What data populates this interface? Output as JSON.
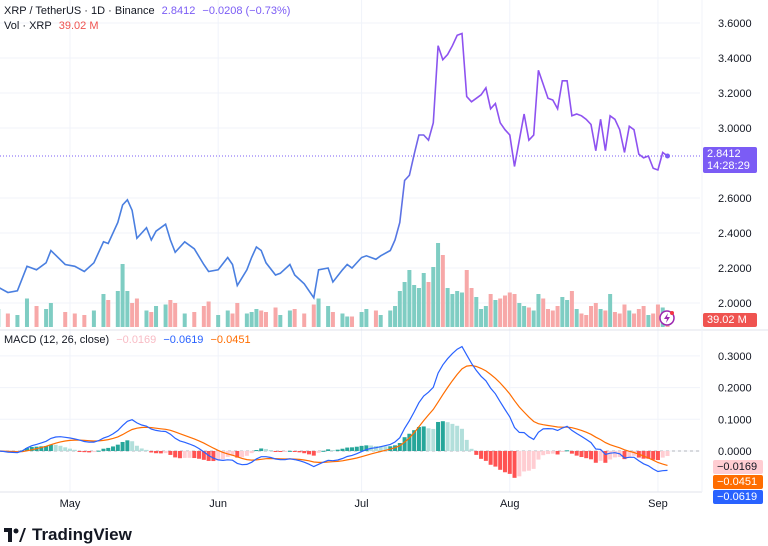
{
  "header": {
    "symbol": "XRP / TetherUS · 1D · Binance",
    "price": "2.8412",
    "change": "−0.0208 (−0.73%)",
    "vol_label": "Vol · XRP",
    "vol_value": "39.02 M"
  },
  "macd_header": {
    "label": "MACD (12, 26, close)",
    "histogram": "−0.0169",
    "macd": "−0.0619",
    "signal": "−0.0451"
  },
  "price_tag": {
    "price": "2.8412",
    "countdown": "14:28:29"
  },
  "vol_tag": "39.02 M",
  "macd_tags": {
    "histogram": "−0.0169",
    "signal": "−0.0451",
    "macd": "−0.0619"
  },
  "branding": "TradingView",
  "colors": {
    "price_up": "#4a7fe0",
    "price_late": "#8e52f0",
    "tag": "#7b5cf5",
    "vol_up": "#7fcdc3",
    "vol_down": "#f7a8a8",
    "vol_tag": "#ef5350",
    "macd": "#2962ff",
    "signal": "#ff6d00",
    "hist_pos_up": "#26a69a",
    "hist_pos_down": "#b2dfdb",
    "hist_neg_down": "#ff5252",
    "hist_neg_up": "#ffcdd2"
  },
  "chart_data": [
    {
      "type": "line",
      "title": "XRP / TetherUS · 1D · Binance",
      "ylim": [
        1.9,
        3.65
      ],
      "y_ticks": [
        "3.6000",
        "3.4000",
        "3.2000",
        "3.0000",
        "2.6000",
        "2.4000",
        "2.2000",
        "2.0000"
      ],
      "x_ticks": [
        "May",
        "Jun",
        "Jul",
        "Aug",
        "Sep"
      ],
      "grid": true,
      "series_columns": [
        "date",
        "close",
        "volume_m"
      ],
      "points": [
        [
          "2025-04-16",
          2.09,
          60
        ],
        [
          "2025-04-18",
          2.06,
          45
        ],
        [
          "2025-04-20",
          2.07,
          40
        ],
        [
          "2025-04-22",
          2.21,
          95
        ],
        [
          "2025-04-24",
          2.19,
          70
        ],
        [
          "2025-04-26",
          2.23,
          60
        ],
        [
          "2025-04-27",
          2.3,
          80
        ],
        [
          "2025-04-30",
          2.22,
          50
        ],
        [
          "2025-05-02",
          2.21,
          45
        ],
        [
          "2025-05-04",
          2.18,
          40
        ],
        [
          "2025-05-06",
          2.23,
          55
        ],
        [
          "2025-05-08",
          2.35,
          110
        ],
        [
          "2025-05-09",
          2.34,
          90
        ],
        [
          "2025-05-11",
          2.46,
          120
        ],
        [
          "2025-05-12",
          2.56,
          210
        ],
        [
          "2025-05-13",
          2.59,
          120
        ],
        [
          "2025-05-14",
          2.53,
          80
        ],
        [
          "2025-05-15",
          2.37,
          95
        ],
        [
          "2025-05-17",
          2.43,
          55
        ],
        [
          "2025-05-18",
          2.36,
          50
        ],
        [
          "2025-05-19",
          2.41,
          70
        ],
        [
          "2025-05-21",
          2.45,
          75
        ],
        [
          "2025-05-22",
          2.36,
          90
        ],
        [
          "2025-05-23",
          2.29,
          80
        ],
        [
          "2025-05-25",
          2.35,
          45
        ],
        [
          "2025-05-27",
          2.31,
          50
        ],
        [
          "2025-05-29",
          2.22,
          70
        ],
        [
          "2025-05-30",
          2.18,
          85
        ],
        [
          "2025-06-01",
          2.19,
          40
        ],
        [
          "2025-06-03",
          2.26,
          55
        ],
        [
          "2025-06-04",
          2.22,
          45
        ],
        [
          "2025-06-05",
          2.1,
          80
        ],
        [
          "2025-06-07",
          2.19,
          45
        ],
        [
          "2025-06-08",
          2.26,
          50
        ],
        [
          "2025-06-09",
          2.32,
          60
        ],
        [
          "2025-06-10",
          2.3,
          55
        ],
        [
          "2025-06-11",
          2.23,
          50
        ],
        [
          "2025-06-13",
          2.16,
          65
        ],
        [
          "2025-06-14",
          2.17,
          40
        ],
        [
          "2025-06-16",
          2.22,
          55
        ],
        [
          "2025-06-17",
          2.16,
          60
        ],
        [
          "2025-06-19",
          2.11,
          45
        ],
        [
          "2025-06-21",
          2.03,
          75
        ],
        [
          "2025-06-22",
          2.19,
          95
        ],
        [
          "2025-06-24",
          2.2,
          70
        ],
        [
          "2025-06-25",
          2.12,
          50
        ],
        [
          "2025-06-27",
          2.19,
          45
        ],
        [
          "2025-06-28",
          2.22,
          35
        ],
        [
          "2025-06-29",
          2.2,
          35
        ],
        [
          "2025-07-01",
          2.26,
          50
        ],
        [
          "2025-07-02",
          2.27,
          60
        ],
        [
          "2025-07-04",
          2.25,
          55
        ],
        [
          "2025-07-05",
          2.27,
          40
        ],
        [
          "2025-07-07",
          2.3,
          55
        ],
        [
          "2025-07-08",
          2.36,
          70
        ],
        [
          "2025-07-09",
          2.46,
          120
        ],
        [
          "2025-07-10",
          2.7,
          150
        ],
        [
          "2025-07-11",
          2.73,
          190
        ],
        [
          "2025-07-12",
          2.85,
          140
        ],
        [
          "2025-07-13",
          2.96,
          130
        ],
        [
          "2025-07-14",
          2.96,
          180
        ],
        [
          "2025-07-15",
          2.93,
          150
        ],
        [
          "2025-07-16",
          3.03,
          200
        ],
        [
          "2025-07-17",
          3.47,
          280
        ],
        [
          "2025-07-18",
          3.39,
          240
        ],
        [
          "2025-07-19",
          3.42,
          130
        ],
        [
          "2025-07-20",
          3.47,
          110
        ],
        [
          "2025-07-21",
          3.53,
          120
        ],
        [
          "2025-07-22",
          3.54,
          115
        ],
        [
          "2025-07-23",
          3.18,
          190
        ],
        [
          "2025-07-24",
          3.15,
          130
        ],
        [
          "2025-07-25",
          3.17,
          100
        ],
        [
          "2025-07-26",
          3.19,
          60
        ],
        [
          "2025-07-27",
          3.23,
          70
        ],
        [
          "2025-07-28",
          3.11,
          110
        ],
        [
          "2025-07-29",
          3.14,
          90
        ],
        [
          "2025-07-30",
          3.03,
          95
        ],
        [
          "2025-07-31",
          2.99,
          105
        ],
        [
          "2025-08-01",
          2.96,
          115
        ],
        [
          "2025-08-02",
          2.78,
          110
        ],
        [
          "2025-08-03",
          2.93,
          80
        ],
        [
          "2025-08-04",
          3.08,
          70
        ],
        [
          "2025-08-05",
          2.93,
          65
        ],
        [
          "2025-08-06",
          2.96,
          55
        ],
        [
          "2025-08-07",
          3.33,
          110
        ],
        [
          "2025-08-08",
          3.25,
          95
        ],
        [
          "2025-08-09",
          3.17,
          60
        ],
        [
          "2025-08-10",
          3.16,
          55
        ],
        [
          "2025-08-11",
          3.11,
          70
        ],
        [
          "2025-08-12",
          3.27,
          100
        ],
        [
          "2025-08-13",
          3.27,
          90
        ],
        [
          "2025-08-14",
          3.07,
          120
        ],
        [
          "2025-08-15",
          3.08,
          60
        ],
        [
          "2025-08-16",
          3.07,
          45
        ],
        [
          "2025-08-17",
          3.05,
          40
        ],
        [
          "2025-08-18",
          3.02,
          70
        ],
        [
          "2025-08-19",
          2.87,
          80
        ],
        [
          "2025-08-20",
          3.05,
          60
        ],
        [
          "2025-08-21",
          2.87,
          55
        ],
        [
          "2025-08-22",
          3.07,
          110
        ],
        [
          "2025-08-23",
          3.05,
          50
        ],
        [
          "2025-08-24",
          2.99,
          45
        ],
        [
          "2025-08-25",
          2.86,
          75
        ],
        [
          "2025-08-26",
          3.01,
          55
        ],
        [
          "2025-08-27",
          2.99,
          45
        ],
        [
          "2025-08-28",
          2.85,
          60
        ],
        [
          "2025-08-29",
          2.83,
          70
        ],
        [
          "2025-08-30",
          2.84,
          40
        ],
        [
          "2025-08-31",
          2.77,
          45
        ],
        [
          "2025-09-01",
          2.76,
          75
        ],
        [
          "2025-09-02",
          2.86,
          65
        ],
        [
          "2025-09-03",
          2.84,
          39.02
        ]
      ]
    },
    {
      "type": "line",
      "title": "MACD (12, 26, close)",
      "ylim": [
        -0.11,
        0.37
      ],
      "y_ticks": [
        "0.3000",
        "0.2000",
        "0.1000",
        "0.0000"
      ],
      "grid": true,
      "series": [
        {
          "name": "MACD"
        },
        {
          "name": "Signal"
        },
        {
          "name": "Histogram"
        }
      ]
    }
  ]
}
